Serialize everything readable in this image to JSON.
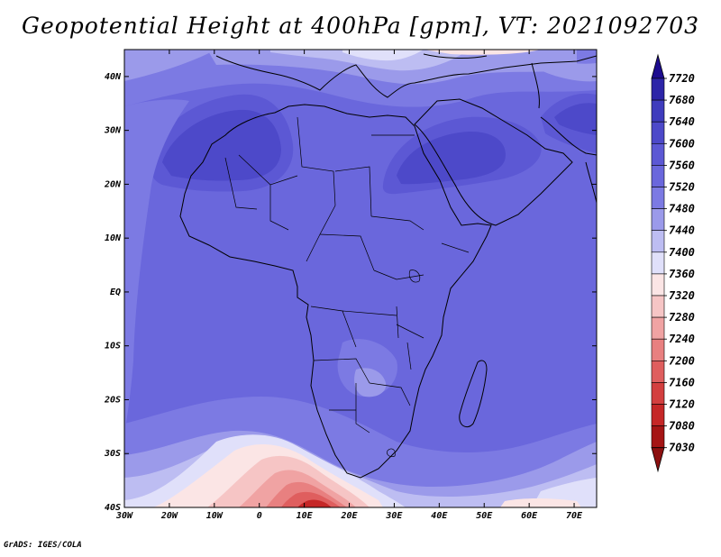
{
  "title": "Geopotential Height at 400hPa [gpm], VT: 2021092703",
  "credit": "GrADS: IGES/COLA",
  "chart_data": {
    "type": "heatmap",
    "variable": "Geopotential Height",
    "level": "400hPa",
    "units": "gpm",
    "valid_time": "2021092703",
    "lon_range": [
      -30,
      75
    ],
    "lat_range": [
      -40,
      45
    ],
    "x_ticks": [
      "30W",
      "20W",
      "10W",
      "0",
      "10E",
      "20E",
      "30E",
      "40E",
      "50E",
      "60E",
      "70E"
    ],
    "y_ticks": [
      "40N",
      "30N",
      "20N",
      "10N",
      "EQ",
      "10S",
      "20S",
      "30S",
      "40S"
    ],
    "colorbar": {
      "levels": [
        7720,
        7680,
        7640,
        7600,
        7560,
        7520,
        7480,
        7440,
        7400,
        7360,
        7320,
        7280,
        7240,
        7200,
        7160,
        7120,
        7080,
        7030
      ],
      "colors": [
        "#1d0c8f",
        "#2d25a8",
        "#3f3cbd",
        "#4d49c9",
        "#5c58d4",
        "#6a67dc",
        "#7c7ae3",
        "#9b9aea",
        "#bdbdf2",
        "#e0e0fa",
        "#fbe5e5",
        "#f6c5c5",
        "#f0a3a3",
        "#e88080",
        "#df5e5e",
        "#d33f3f",
        "#c52727",
        "#a51515"
      ],
      "top_color": "#1d0c8f",
      "bottom_color": "#8c1010"
    }
  }
}
